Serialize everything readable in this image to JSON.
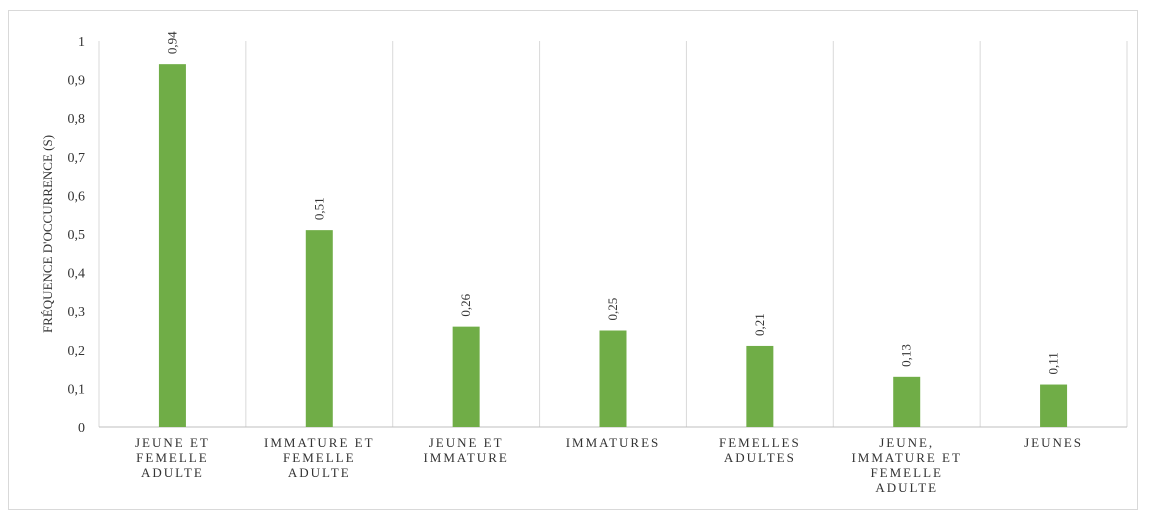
{
  "chart_data": {
    "type": "bar",
    "categories": [
      [
        "JEUNE ET",
        "FEMELLE",
        "ADULTE"
      ],
      [
        "IMMATURE ET",
        "FEMELLE",
        "ADULTE"
      ],
      [
        "JEUNE ET",
        "IMMATURE"
      ],
      [
        "IMMATURES"
      ],
      [
        "FEMELLES",
        "ADULTES"
      ],
      [
        "JEUNE,",
        "IMMATURE ET",
        "FEMELLE",
        "ADULTE"
      ],
      [
        "JEUNES"
      ]
    ],
    "values": [
      0.94,
      0.51,
      0.26,
      0.25,
      0.21,
      0.13,
      0.11
    ],
    "value_labels": [
      "0,94",
      "0,51",
      "0,26",
      "0,25",
      "0,21",
      "0,13",
      "0,11"
    ],
    "yticks": [
      "0",
      "0,1",
      "0,2",
      "0,3",
      "0,4",
      "0,5",
      "0,6",
      "0,7",
      "0,8",
      "0,9",
      "1"
    ],
    "ylim": [
      0,
      1
    ],
    "ylabel": "FRÉQUENCE D'OCCURRENCE (S)",
    "xlabel": "",
    "title": "",
    "bar_color": "#70ad47",
    "grid": "vertical separators between categories"
  }
}
